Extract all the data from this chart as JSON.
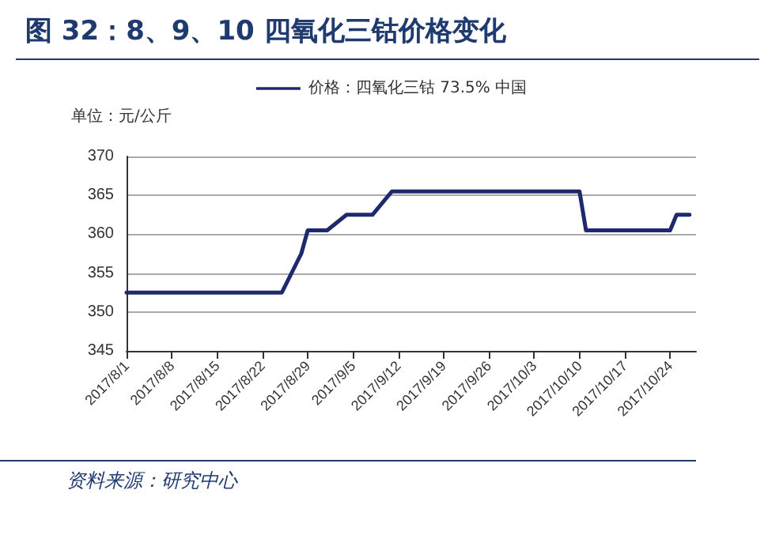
{
  "chart_data": {
    "type": "line",
    "title": "图 32：8、9、10 四氧化三钴价格变化",
    "ylabel": "单位：元/公斤",
    "annotations": [
      "资料来源：研究中心"
    ],
    "x": [
      "2017-08-01",
      "2017-08-25",
      "2017-08-28",
      "2017-08-29",
      "2017-09-01",
      "2017-09-04",
      "2017-09-08",
      "2017-09-11",
      "2017-10-10",
      "2017-10-11",
      "2017-10-24",
      "2017-10-25",
      "2017-10-27"
    ],
    "series": [
      {
        "name": "价格：四氧化三钴 73.5% 中国",
        "color": "#1f2a6e",
        "values": [
          352.5,
          352.5,
          357.5,
          360.5,
          360.5,
          362.5,
          362.5,
          365.5,
          365.5,
          360.5,
          360.5,
          362.5,
          362.5
        ]
      }
    ],
    "xlim": [
      "2017-08-01",
      "2017-10-28"
    ],
    "xticks": [
      {
        "value": "2017-08-01",
        "label": "2017/8/1"
      },
      {
        "value": "2017-08-08",
        "label": "2017/8/8"
      },
      {
        "value": "2017-08-15",
        "label": "2017/8/15"
      },
      {
        "value": "2017-08-22",
        "label": "2017/8/22"
      },
      {
        "value": "2017-08-29",
        "label": "2017/8/29"
      },
      {
        "value": "2017-09-05",
        "label": "2017/9/5"
      },
      {
        "value": "2017-09-12",
        "label": "2017/9/12"
      },
      {
        "value": "2017-09-19",
        "label": "2017/9/19"
      },
      {
        "value": "2017-09-26",
        "label": "2017/9/26"
      },
      {
        "value": "2017-10-03",
        "label": "2017/10/3"
      },
      {
        "value": "2017-10-10",
        "label": "2017/10/10"
      },
      {
        "value": "2017-10-17",
        "label": "2017/10/17"
      },
      {
        "value": "2017-10-24",
        "label": "2017/10/24"
      }
    ],
    "ylim": [
      345,
      370
    ],
    "yticks": [
      345,
      350,
      355,
      360,
      365,
      370
    ],
    "grid": "y",
    "legend": "top",
    "marker": "none",
    "line_style": "solid"
  }
}
